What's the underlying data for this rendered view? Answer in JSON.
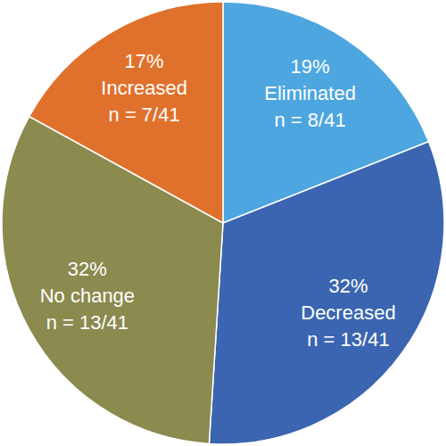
{
  "chart_data": {
    "type": "pie",
    "categories": [
      "Eliminated",
      "Decreased",
      "No change",
      "Increased"
    ],
    "values": [
      19,
      32,
      32,
      17
    ],
    "value_labels": [
      "19%",
      "32%",
      "32%",
      "17%"
    ],
    "count_labels": [
      "n = 8/41",
      "n = 13/41",
      "n = 13/41",
      "n = 7/41"
    ],
    "colors": [
      "#4da6df",
      "#3b65b1",
      "#8b8a4f",
      "#e0712c"
    ],
    "data_labels": true
  }
}
